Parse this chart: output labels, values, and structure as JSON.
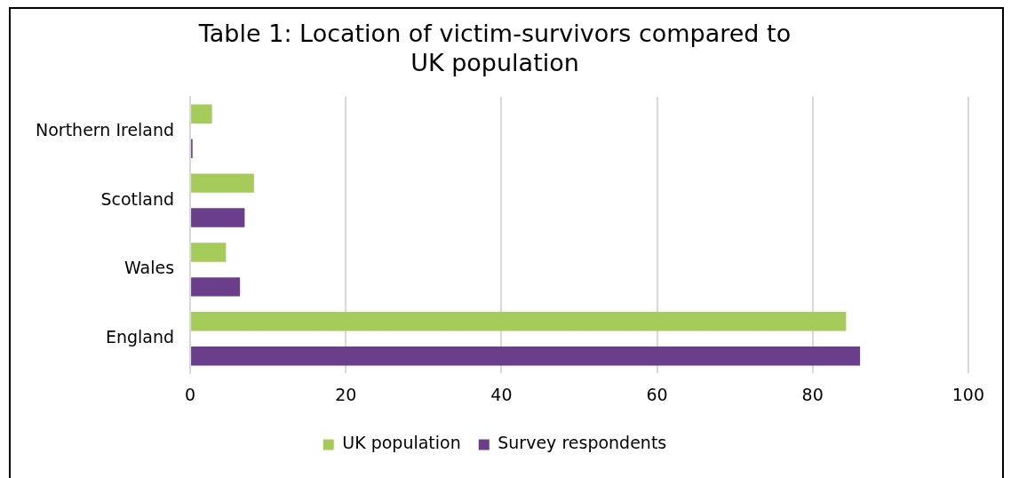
{
  "chart_data": {
    "type": "bar",
    "orientation": "horizontal",
    "title": "Table 1: Location of victim-survivors compared to UK population",
    "categories": [
      "Northern Ireland",
      "Scotland",
      "Wales",
      "England"
    ],
    "series": [
      {
        "name": "UK population",
        "color": "#a5cc5b",
        "values": [
          2.8,
          8.2,
          4.6,
          84.3
        ]
      },
      {
        "name": "Survey respondents",
        "color": "#6a3e8a",
        "values": [
          0.3,
          7.0,
          6.4,
          86.1
        ]
      }
    ],
    "xlim": [
      0,
      100
    ],
    "xticks": [
      0,
      20,
      40,
      60,
      80,
      100
    ],
    "grid": "x",
    "legend": "bottom"
  }
}
